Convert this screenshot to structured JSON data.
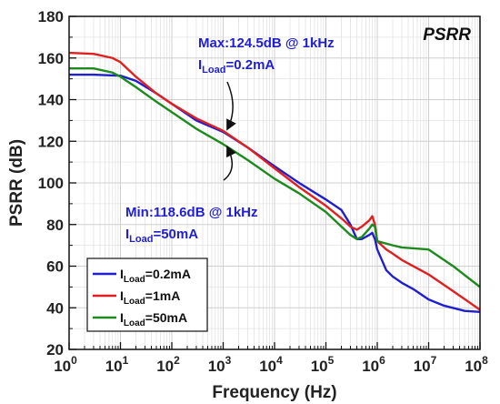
{
  "chart_data": {
    "type": "line",
    "title": "PSRR",
    "xlabel": "Frequency (Hz)",
    "ylabel": "PSRR (dB)",
    "xscale": "log",
    "xlim": [
      1,
      100000000
    ],
    "ylim": [
      20,
      180
    ],
    "grid": true,
    "legend_position": "bottom-left",
    "x_ticks": [
      {
        "value": 1,
        "base": "10",
        "exp": "0"
      },
      {
        "value": 10,
        "base": "10",
        "exp": "1"
      },
      {
        "value": 100,
        "base": "10",
        "exp": "2"
      },
      {
        "value": 1000,
        "base": "10",
        "exp": "3"
      },
      {
        "value": 10000,
        "base": "10",
        "exp": "4"
      },
      {
        "value": 100000,
        "base": "10",
        "exp": "5"
      },
      {
        "value": 1000000,
        "base": "10",
        "exp": "6"
      },
      {
        "value": 10000000,
        "base": "10",
        "exp": "7"
      },
      {
        "value": 100000000,
        "base": "10",
        "exp": "8"
      }
    ],
    "y_ticks": [
      {
        "value": 20,
        "label": "20"
      },
      {
        "value": 40,
        "label": "40"
      },
      {
        "value": 60,
        "label": "60"
      },
      {
        "value": 80,
        "label": "80"
      },
      {
        "value": 100,
        "label": "100"
      },
      {
        "value": 120,
        "label": "120"
      },
      {
        "value": 140,
        "label": "140"
      },
      {
        "value": 160,
        "label": "160"
      },
      {
        "value": 180,
        "label": "180"
      }
    ],
    "series": [
      {
        "label_main": "I",
        "label_sub": "Load",
        "label_rest": "=0.2mA",
        "color": "#1f1fd0",
        "points": [
          [
            1,
            152
          ],
          [
            3,
            152
          ],
          [
            10,
            151.5
          ],
          [
            20,
            149
          ],
          [
            50,
            143
          ],
          [
            100,
            138
          ],
          [
            300,
            130
          ],
          [
            1000,
            124.5
          ],
          [
            3000,
            117
          ],
          [
            10000,
            108
          ],
          [
            30000,
            100
          ],
          [
            100000,
            92
          ],
          [
            200000,
            87
          ],
          [
            300000,
            80
          ],
          [
            400000,
            73
          ],
          [
            500000,
            73
          ],
          [
            700000,
            75
          ],
          [
            800000,
            76
          ],
          [
            900000,
            73
          ],
          [
            1000000,
            68
          ],
          [
            1500000,
            58
          ],
          [
            2000000,
            55
          ],
          [
            3000000,
            52
          ],
          [
            5000000,
            49
          ],
          [
            10000000,
            44
          ],
          [
            20000000,
            41
          ],
          [
            50000000,
            38.5
          ],
          [
            100000000,
            38
          ]
        ]
      },
      {
        "label_main": "I",
        "label_sub": "Load",
        "label_rest": "=1mA",
        "color": "#e02020",
        "points": [
          [
            1,
            162.5
          ],
          [
            3,
            162
          ],
          [
            7,
            160
          ],
          [
            10,
            158
          ],
          [
            20,
            151
          ],
          [
            50,
            143
          ],
          [
            100,
            138
          ],
          [
            300,
            131
          ],
          [
            1000,
            125
          ],
          [
            3000,
            117
          ],
          [
            10000,
            107
          ],
          [
            30000,
            98
          ],
          [
            100000,
            89
          ],
          [
            200000,
            83
          ],
          [
            300000,
            79
          ],
          [
            400000,
            77.5
          ],
          [
            500000,
            79
          ],
          [
            700000,
            82
          ],
          [
            800000,
            84
          ],
          [
            900000,
            80
          ],
          [
            1000000,
            72
          ],
          [
            1500000,
            68
          ],
          [
            2000000,
            66
          ],
          [
            3000000,
            63
          ],
          [
            10000000,
            56
          ],
          [
            30000000,
            48
          ],
          [
            100000000,
            39
          ]
        ]
      },
      {
        "label_main": "I",
        "label_sub": "Load",
        "label_rest": "=50mA",
        "color": "#1e8a1e",
        "points": [
          [
            1,
            155
          ],
          [
            3,
            155
          ],
          [
            7,
            153
          ],
          [
            10,
            151
          ],
          [
            20,
            146
          ],
          [
            50,
            139
          ],
          [
            100,
            134
          ],
          [
            300,
            126
          ],
          [
            1000,
            118.6
          ],
          [
            3000,
            111
          ],
          [
            10000,
            102
          ],
          [
            30000,
            95
          ],
          [
            100000,
            86
          ],
          [
            200000,
            79
          ],
          [
            300000,
            75
          ],
          [
            400000,
            73
          ],
          [
            500000,
            74
          ],
          [
            700000,
            78
          ],
          [
            800000,
            80
          ],
          [
            900000,
            79
          ],
          [
            1000000,
            72
          ],
          [
            2000000,
            70
          ],
          [
            3000000,
            69
          ],
          [
            10000000,
            68
          ],
          [
            30000000,
            60
          ],
          [
            100000000,
            50
          ]
        ]
      }
    ],
    "annotations": [
      {
        "line1": "Max:124.5dB @ 1kHz",
        "line2_main": "I",
        "line2_sub": "Load",
        "line2_rest": "=0.2mA",
        "target": [
          1000,
          124.5
        ]
      },
      {
        "line1": "Min:118.6dB @ 1kHz",
        "line2_main": "I",
        "line2_sub": "Load",
        "line2_rest": "=50mA",
        "target": [
          1000,
          118.6
        ]
      }
    ]
  }
}
